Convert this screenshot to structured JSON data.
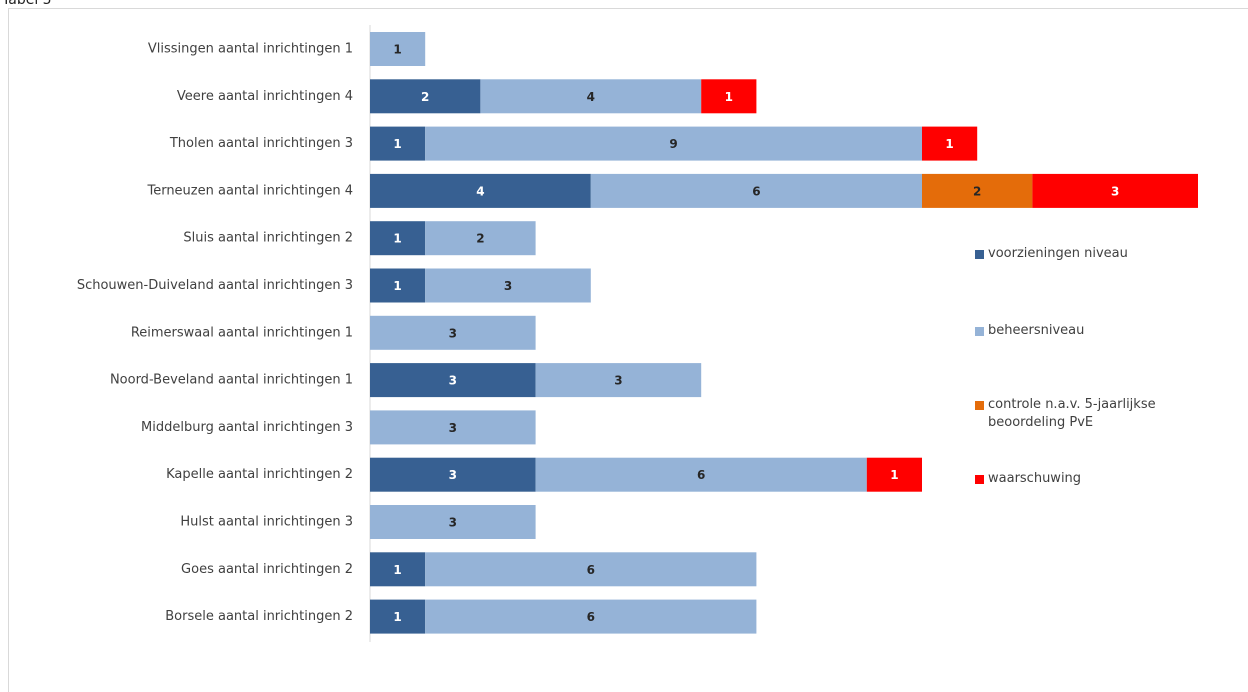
{
  "caption": "Tabel 5",
  "chart_data": {
    "type": "stacked-barh",
    "categories": [
      "Vlissingen aantal inrichtingen 1",
      "Veere aantal inrichtingen 4",
      "Tholen aantal inrichtingen 3",
      "Terneuzen aantal inrichtingen 4",
      "Sluis aantal inrichtingen 2",
      "Schouwen-Duiveland aantal inrichtingen 3",
      "Reimerswaal aantal inrichtingen 1",
      "Noord-Beveland aantal inrichtingen 1",
      "Middelburg aantal inrichtingen 3",
      "Kapelle aantal inrichtingen 2",
      "Hulst aantal inrichtingen 3",
      "Goes aantal inrichtingen 2",
      "Borsele aantal inrichtingen 2"
    ],
    "series": [
      {
        "name": "voorzieningen niveau",
        "color": "#376092",
        "label_color": "#ffffff",
        "values": [
          null,
          2,
          1,
          4,
          1,
          1,
          null,
          3,
          null,
          3,
          null,
          1,
          1
        ]
      },
      {
        "name": "beheersniveau",
        "color": "#95b3d7",
        "label_color": "#262626",
        "values": [
          1,
          4,
          9,
          6,
          2,
          3,
          3,
          3,
          3,
          6,
          3,
          6,
          6
        ]
      },
      {
        "name": "controle n.a.v. 5-jaarlijkse beoordeling PvE",
        "color": "#e46c0a",
        "label_color": "#262626",
        "values": [
          null,
          null,
          null,
          2,
          null,
          null,
          null,
          null,
          null,
          null,
          null,
          null,
          null
        ]
      },
      {
        "name": "waarschuwing",
        "color": "#ff0000",
        "label_color": "#ffffff",
        "values": [
          null,
          1,
          1,
          3,
          null,
          null,
          null,
          null,
          null,
          1,
          null,
          null,
          null
        ]
      }
    ],
    "xlim": [
      0,
      15
    ]
  }
}
